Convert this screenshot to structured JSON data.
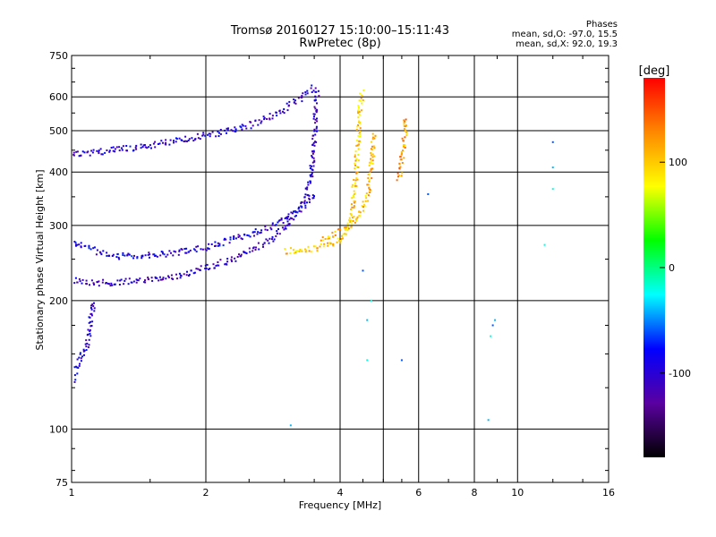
{
  "chart_data": {
    "type": "scatter",
    "title": "Tromsø 20160127 15:10:00–15:11:43",
    "subtitle": "RwPretec (8p)",
    "xlabel": "Frequency [MHz]",
    "ylabel": "Stationary phase Virtual Height [km]",
    "x_scale": "log",
    "y_scale": "log",
    "xlim": [
      1,
      16
    ],
    "ylim": [
      75,
      750
    ],
    "x_ticks": [
      1,
      2,
      4,
      6,
      8,
      10,
      16
    ],
    "x_tick_labels": [
      "1",
      "2",
      "4",
      "6",
      "8",
      "10",
      "16"
    ],
    "y_ticks": [
      75,
      100,
      200,
      300,
      400,
      500,
      600,
      750
    ],
    "y_tick_labels": [
      "75",
      "100",
      "200",
      "300",
      "400",
      "500",
      "600",
      "750"
    ],
    "grid": true,
    "legend": {
      "title": "Phases",
      "lines": [
        "mean, sd,O: -97.0, 15.5",
        "mean, sd,X:  92.0, 19.3"
      ],
      "placement": "top-right"
    },
    "colorbar": {
      "label": "[deg]",
      "range": [
        -180,
        180
      ],
      "ticks": [
        100,
        0,
        -100
      ],
      "tick_labels": [
        "100",
        "0",
        "-100"
      ],
      "colors": [
        "#000000",
        "#5a00a0",
        "#0000ff",
        "#00ffff",
        "#00ff00",
        "#ffff00",
        "#ff8800",
        "#ff0000"
      ]
    },
    "series": [
      {
        "trace": "O-mode low F trace (blue)",
        "phase": -105,
        "x": [
          1.0,
          1.05,
          1.1,
          1.15,
          1.2,
          1.3,
          1.4,
          1.5,
          1.6,
          1.7,
          1.8,
          1.9,
          2.0,
          2.1,
          2.2,
          2.3,
          2.4,
          2.5,
          2.6,
          2.7,
          2.8,
          2.9,
          3.0,
          3.1,
          3.2,
          3.3,
          3.4,
          3.45,
          3.5,
          3.55
        ],
        "y": [
          225,
          223,
          222,
          221,
          221,
          222,
          223,
          225,
          227,
          230,
          233,
          236,
          240,
          244,
          248,
          252,
          256,
          262,
          268,
          274,
          281,
          289,
          298,
          310,
          325,
          345,
          380,
          430,
          520,
          630
        ]
      },
      {
        "trace": "O-mode upper F trace (blue)",
        "phase": -100,
        "x": [
          1.0,
          1.1,
          1.2,
          1.4,
          1.6,
          1.8,
          2.0,
          2.2,
          2.4,
          2.6,
          2.8,
          3.0,
          3.2,
          3.35,
          3.5
        ],
        "y": [
          440,
          445,
          450,
          460,
          470,
          480,
          490,
          500,
          510,
          525,
          545,
          565,
          590,
          615,
          640
        ]
      },
      {
        "trace": "O-mode mid F trace (blue)",
        "phase": -95,
        "x": [
          1.0,
          1.1,
          1.2,
          1.3,
          1.5,
          1.7,
          1.9,
          2.1,
          2.3,
          2.5,
          2.7,
          2.9,
          3.1,
          3.3,
          3.5
        ],
        "y": [
          275,
          265,
          258,
          255,
          256,
          260,
          265,
          272,
          280,
          288,
          296,
          305,
          318,
          335,
          360
        ]
      },
      {
        "trace": "X-mode F trace (yellow)",
        "phase": 100,
        "x": [
          3.0,
          3.2,
          3.4,
          3.6,
          3.8,
          4.0,
          4.1,
          4.2,
          4.25,
          4.3,
          4.35,
          4.4,
          4.45
        ],
        "y": [
          262,
          263,
          265,
          268,
          272,
          280,
          290,
          305,
          330,
          380,
          450,
          540,
          620
        ]
      },
      {
        "trace": "X-mode lower trace (yellow)",
        "phase": 105,
        "x": [
          3.6,
          3.8,
          4.0,
          4.2,
          4.4,
          4.6,
          4.7,
          4.75
        ],
        "y": [
          280,
          285,
          292,
          300,
          320,
          360,
          430,
          500
        ]
      },
      {
        "trace": "X-mode high trace (orange)",
        "phase": 120,
        "x": [
          5.4,
          5.45,
          5.5,
          5.55,
          5.6
        ],
        "y": [
          390,
          420,
          450,
          490,
          540
        ]
      },
      {
        "trace": "Low-frequency echoes (blue)",
        "phase": -100,
        "x": [
          1.0,
          1.02,
          1.05,
          1.08,
          1.1,
          1.12
        ],
        "y": [
          130,
          140,
          150,
          160,
          180,
          200
        ]
      },
      {
        "trace": "Scattered points",
        "phase": -60,
        "x": [
          4.5,
          4.6,
          4.6,
          5.5,
          8.6,
          8.7,
          8.8,
          8.9,
          11.5,
          12.0,
          12.0,
          12.0,
          6.3,
          3.1,
          4.7
        ],
        "y": [
          235,
          180,
          145,
          145,
          105,
          165,
          175,
          180,
          270,
          470,
          410,
          365,
          355,
          102,
          200
        ]
      }
    ]
  }
}
